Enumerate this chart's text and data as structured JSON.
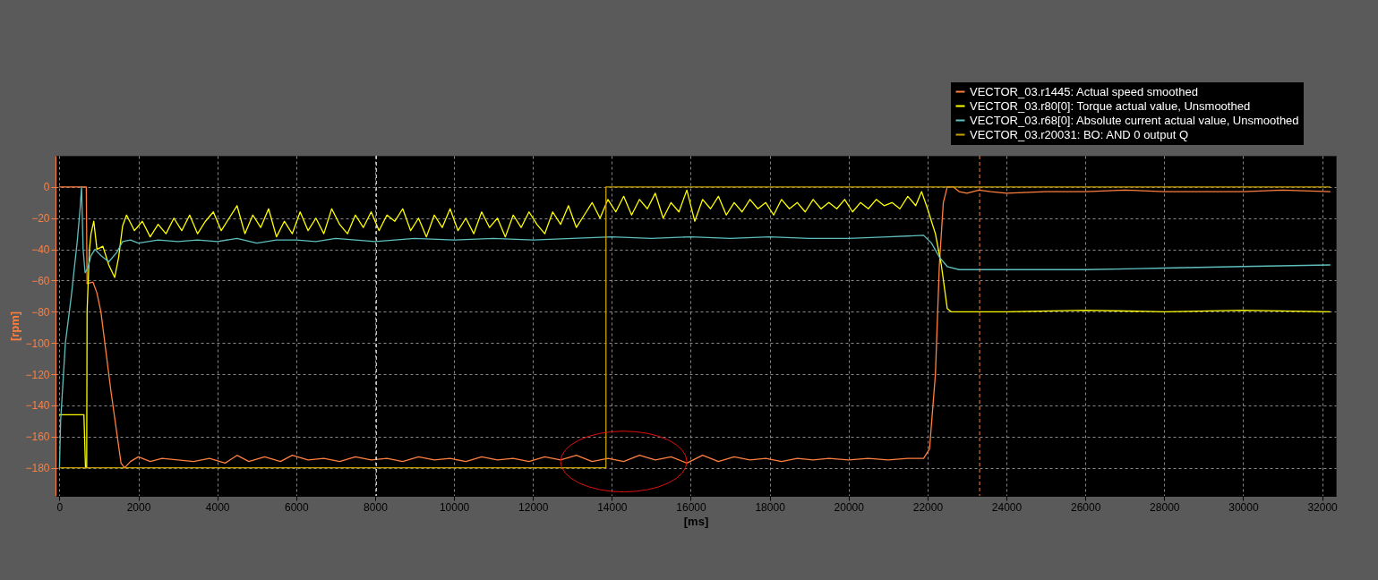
{
  "chart_data": {
    "type": "line",
    "xlabel": "[ms]",
    "ylabel": "[rpm]",
    "xlim": [
      -100,
      32350
    ],
    "ylim": [
      -198,
      20
    ],
    "xticks": [
      0,
      2000,
      4000,
      6000,
      8000,
      10000,
      12000,
      14000,
      16000,
      18000,
      20000,
      22000,
      24000,
      26000,
      28000,
      30000,
      32000
    ],
    "yticks": [
      0,
      -20,
      -40,
      -60,
      -80,
      -100,
      -120,
      -140,
      -160,
      -180
    ],
    "grid": true,
    "legend": "top right",
    "ref_lines": [
      {
        "axis": "x",
        "value": 8030,
        "color": "#ffffff",
        "line_style": "dashed"
      },
      {
        "axis": "x",
        "value": 23320,
        "color": "#ff7f3f",
        "line_style": "dashed"
      }
    ],
    "series": [
      {
        "name": "VECTOR_03.r1445: Actual speed smoothed",
        "color": "#ff7f3f",
        "x": [
          0,
          680,
          700,
          850,
          950,
          1050,
          1300,
          1560,
          1650,
          1800,
          2000,
          2300,
          2600,
          3000,
          3400,
          3800,
          4200,
          4500,
          4800,
          5200,
          5600,
          5900,
          6300,
          6700,
          7100,
          7500,
          7900,
          8300,
          8700,
          9100,
          9500,
          9900,
          10300,
          10700,
          11100,
          11500,
          11900,
          12300,
          12700,
          13100,
          13500,
          13900,
          14300,
          14700,
          15100,
          15500,
          15900,
          16300,
          16700,
          17100,
          17500,
          17900,
          18300,
          18700,
          19100,
          19500,
          20000,
          20500,
          21000,
          21500,
          21900,
          22050,
          22200,
          22300,
          22400,
          22500,
          22650,
          22800,
          23000,
          23300,
          23600,
          24000,
          25000,
          26000,
          27000,
          28000,
          29000,
          30000,
          31000,
          32200
        ],
        "values": [
          0,
          0,
          -62,
          -61,
          -68,
          -80,
          -130,
          -177,
          -180,
          -176,
          -173,
          -176,
          -174,
          -175,
          -176,
          -174,
          -177,
          -172,
          -176,
          -173,
          -176,
          -172,
          -175,
          -174,
          -176,
          -173,
          -175,
          -174,
          -176,
          -173,
          -175,
          -174,
          -176,
          -173,
          -175,
          -174,
          -176,
          -173,
          -175,
          -172,
          -176,
          -174,
          -176,
          -172,
          -175,
          -173,
          -177,
          -172,
          -176,
          -173,
          -175,
          -174,
          -176,
          -174,
          -175,
          -174,
          -175,
          -174,
          -175,
          -174,
          -174,
          -168,
          -120,
          -50,
          -10,
          0,
          0,
          -3,
          -4,
          -2,
          -3,
          -4,
          -3,
          -3,
          -2,
          -3,
          -3,
          -3,
          -2,
          -3
        ]
      },
      {
        "name": "VECTOR_03.r80[0]: Torque actual value, Unsmoothed",
        "color": "#ffff00",
        "x": [
          0,
          620,
          660,
          690,
          700,
          760,
          800,
          870,
          950,
          1100,
          1250,
          1400,
          1500,
          1600,
          1700,
          1900,
          2100,
          2300,
          2500,
          2700,
          2900,
          3100,
          3300,
          3500,
          3700,
          3900,
          4100,
          4300,
          4500,
          4700,
          4900,
          5100,
          5300,
          5500,
          5700,
          5900,
          6100,
          6300,
          6500,
          6700,
          6900,
          7100,
          7300,
          7500,
          7700,
          7900,
          8100,
          8300,
          8500,
          8700,
          8900,
          9100,
          9300,
          9500,
          9700,
          9900,
          10100,
          10300,
          10500,
          10700,
          10900,
          11100,
          11300,
          11500,
          11700,
          11900,
          12100,
          12300,
          12500,
          12700,
          12900,
          13100,
          13300,
          13500,
          13700,
          13900,
          14100,
          14300,
          14500,
          14700,
          14900,
          15100,
          15300,
          15500,
          15700,
          15900,
          16100,
          16300,
          16500,
          16700,
          16900,
          17100,
          17300,
          17500,
          17700,
          17900,
          18100,
          18300,
          18500,
          18700,
          18900,
          19100,
          19300,
          19500,
          19700,
          19900,
          20100,
          20300,
          20500,
          20700,
          20900,
          21100,
          21300,
          21500,
          21700,
          21850,
          22000,
          22200,
          22350,
          22500,
          22600,
          24000,
          26000,
          28000,
          30000,
          32200
        ],
        "values": [
          -146,
          -146,
          -180,
          -180,
          -80,
          -40,
          -30,
          -22,
          -40,
          -38,
          -50,
          -58,
          -45,
          -25,
          -18,
          -28,
          -22,
          -32,
          -24,
          -30,
          -20,
          -28,
          -18,
          -30,
          -22,
          -16,
          -28,
          -20,
          -12,
          -30,
          -18,
          -26,
          -14,
          -32,
          -22,
          -30,
          -16,
          -28,
          -20,
          -30,
          -14,
          -24,
          -30,
          -18,
          -26,
          -16,
          -28,
          -18,
          -22,
          -14,
          -28,
          -20,
          -32,
          -18,
          -26,
          -14,
          -28,
          -20,
          -30,
          -16,
          -26,
          -20,
          -32,
          -18,
          -26,
          -16,
          -24,
          -30,
          -16,
          -24,
          -12,
          -26,
          -18,
          -10,
          -20,
          -8,
          -16,
          -6,
          -18,
          -8,
          -14,
          -4,
          -20,
          -10,
          -16,
          -2,
          -22,
          -8,
          -14,
          -6,
          -18,
          -10,
          -16,
          -8,
          -14,
          -10,
          -18,
          -8,
          -14,
          -10,
          -16,
          -8,
          -14,
          -10,
          -14,
          -8,
          -16,
          -10,
          -14,
          -8,
          -12,
          -10,
          -14,
          -6,
          -12,
          -3,
          -14,
          -30,
          -50,
          -78,
          -80,
          -80,
          -79,
          -80,
          -79,
          -80
        ]
      },
      {
        "name": "VECTOR_03.r68[0]: Absolute current actual value, Unsmoothed",
        "color": "#5fbfbf",
        "x": [
          0,
          30,
          150,
          300,
          450,
          520,
          560,
          600,
          650,
          720,
          800,
          900,
          1050,
          1250,
          1450,
          1600,
          1800,
          2000,
          2500,
          3000,
          3500,
          4000,
          4500,
          5000,
          5500,
          6000,
          6500,
          7000,
          7500,
          8000,
          9000,
          10000,
          11000,
          12000,
          13000,
          14000,
          15000,
          16000,
          17000,
          18000,
          19000,
          20000,
          21000,
          21900,
          22100,
          22300,
          22500,
          22800,
          24000,
          26000,
          28000,
          30000,
          32200
        ],
        "values": [
          -180,
          -150,
          -100,
          -70,
          -35,
          -15,
          0,
          -40,
          -55,
          -52,
          -44,
          -40,
          -44,
          -48,
          -42,
          -35,
          -34,
          -36,
          -34,
          -35,
          -34,
          -35,
          -33,
          -36,
          -34,
          -34,
          -35,
          -33,
          -34,
          -35,
          -33,
          -34,
          -33,
          -34,
          -33,
          -32,
          -33,
          -32,
          -33,
          -32,
          -33,
          -33,
          -32,
          -31,
          -36,
          -45,
          -51,
          -53,
          -53,
          -53,
          -52,
          -51,
          -50
        ]
      },
      {
        "name": "VECTOR_03.r20031: BO: AND 0 output Q",
        "color": "#c8a000",
        "type": "step",
        "x": [
          0,
          13850,
          32200
        ],
        "values": [
          -180,
          0,
          0
        ]
      }
    ]
  }
}
